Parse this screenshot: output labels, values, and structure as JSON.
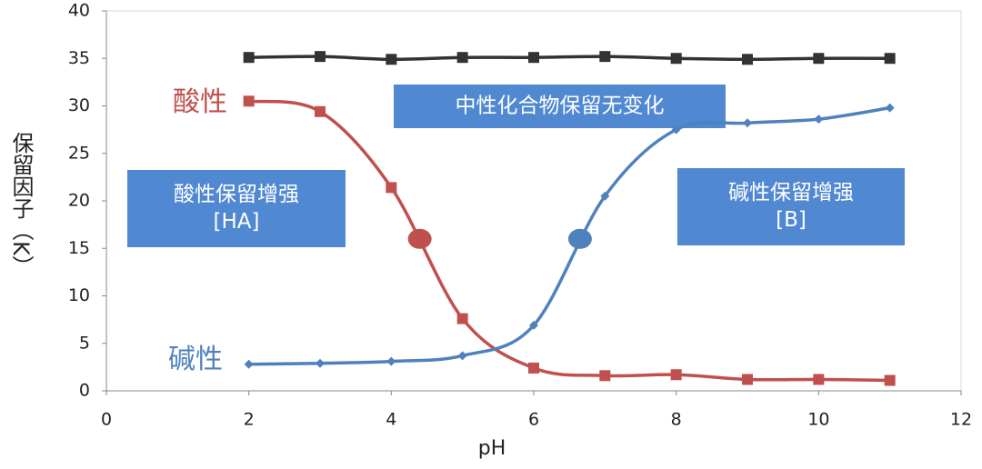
{
  "chart_data": {
    "type": "line",
    "x_label": "pH",
    "y_label": "保留因子（K）",
    "x": [
      2,
      3,
      4,
      5,
      6,
      7,
      8,
      9,
      10,
      11
    ],
    "series": [
      {
        "color": "#333333",
        "marker": "square",
        "values": [
          35.1,
          35.2,
          34.9,
          35.1,
          35.1,
          35.2,
          35.0,
          34.9,
          35.0,
          35.0
        ]
      },
      {
        "name": "酸性",
        "color": "#c0504d",
        "marker": "square",
        "values": [
          30.5,
          29.4,
          21.4,
          7.6,
          2.4,
          1.6,
          1.7,
          1.2,
          1.2,
          1.1
        ]
      },
      {
        "name": "碱性",
        "color": "#4f81bd",
        "marker": "diamond",
        "values": [
          2.8,
          2.9,
          3.1,
          3.7,
          6.9,
          20.5,
          27.5,
          28.2,
          28.6,
          29.8
        ]
      }
    ],
    "highlight_points": [
      {
        "x": 4.4,
        "y": 16,
        "color": "#c0504d"
      },
      {
        "x": 6.65,
        "y": 16,
        "color": "#4f81bd"
      }
    ],
    "annotations": [
      [
        "酸性保留增强",
        "[HA]"
      ],
      [
        "中性化合物保留无变化"
      ],
      [
        "碱性保留增强",
        "[B]"
      ]
    ],
    "annotation_color": "#5088d2",
    "xlim": [
      0,
      12
    ],
    "xticks": [
      0,
      2,
      4,
      6,
      8,
      10,
      12
    ],
    "ylim": [
      0,
      40
    ],
    "yticks": [
      0,
      5,
      10,
      15,
      20,
      25,
      30,
      35,
      40
    ],
    "grid": false
  }
}
